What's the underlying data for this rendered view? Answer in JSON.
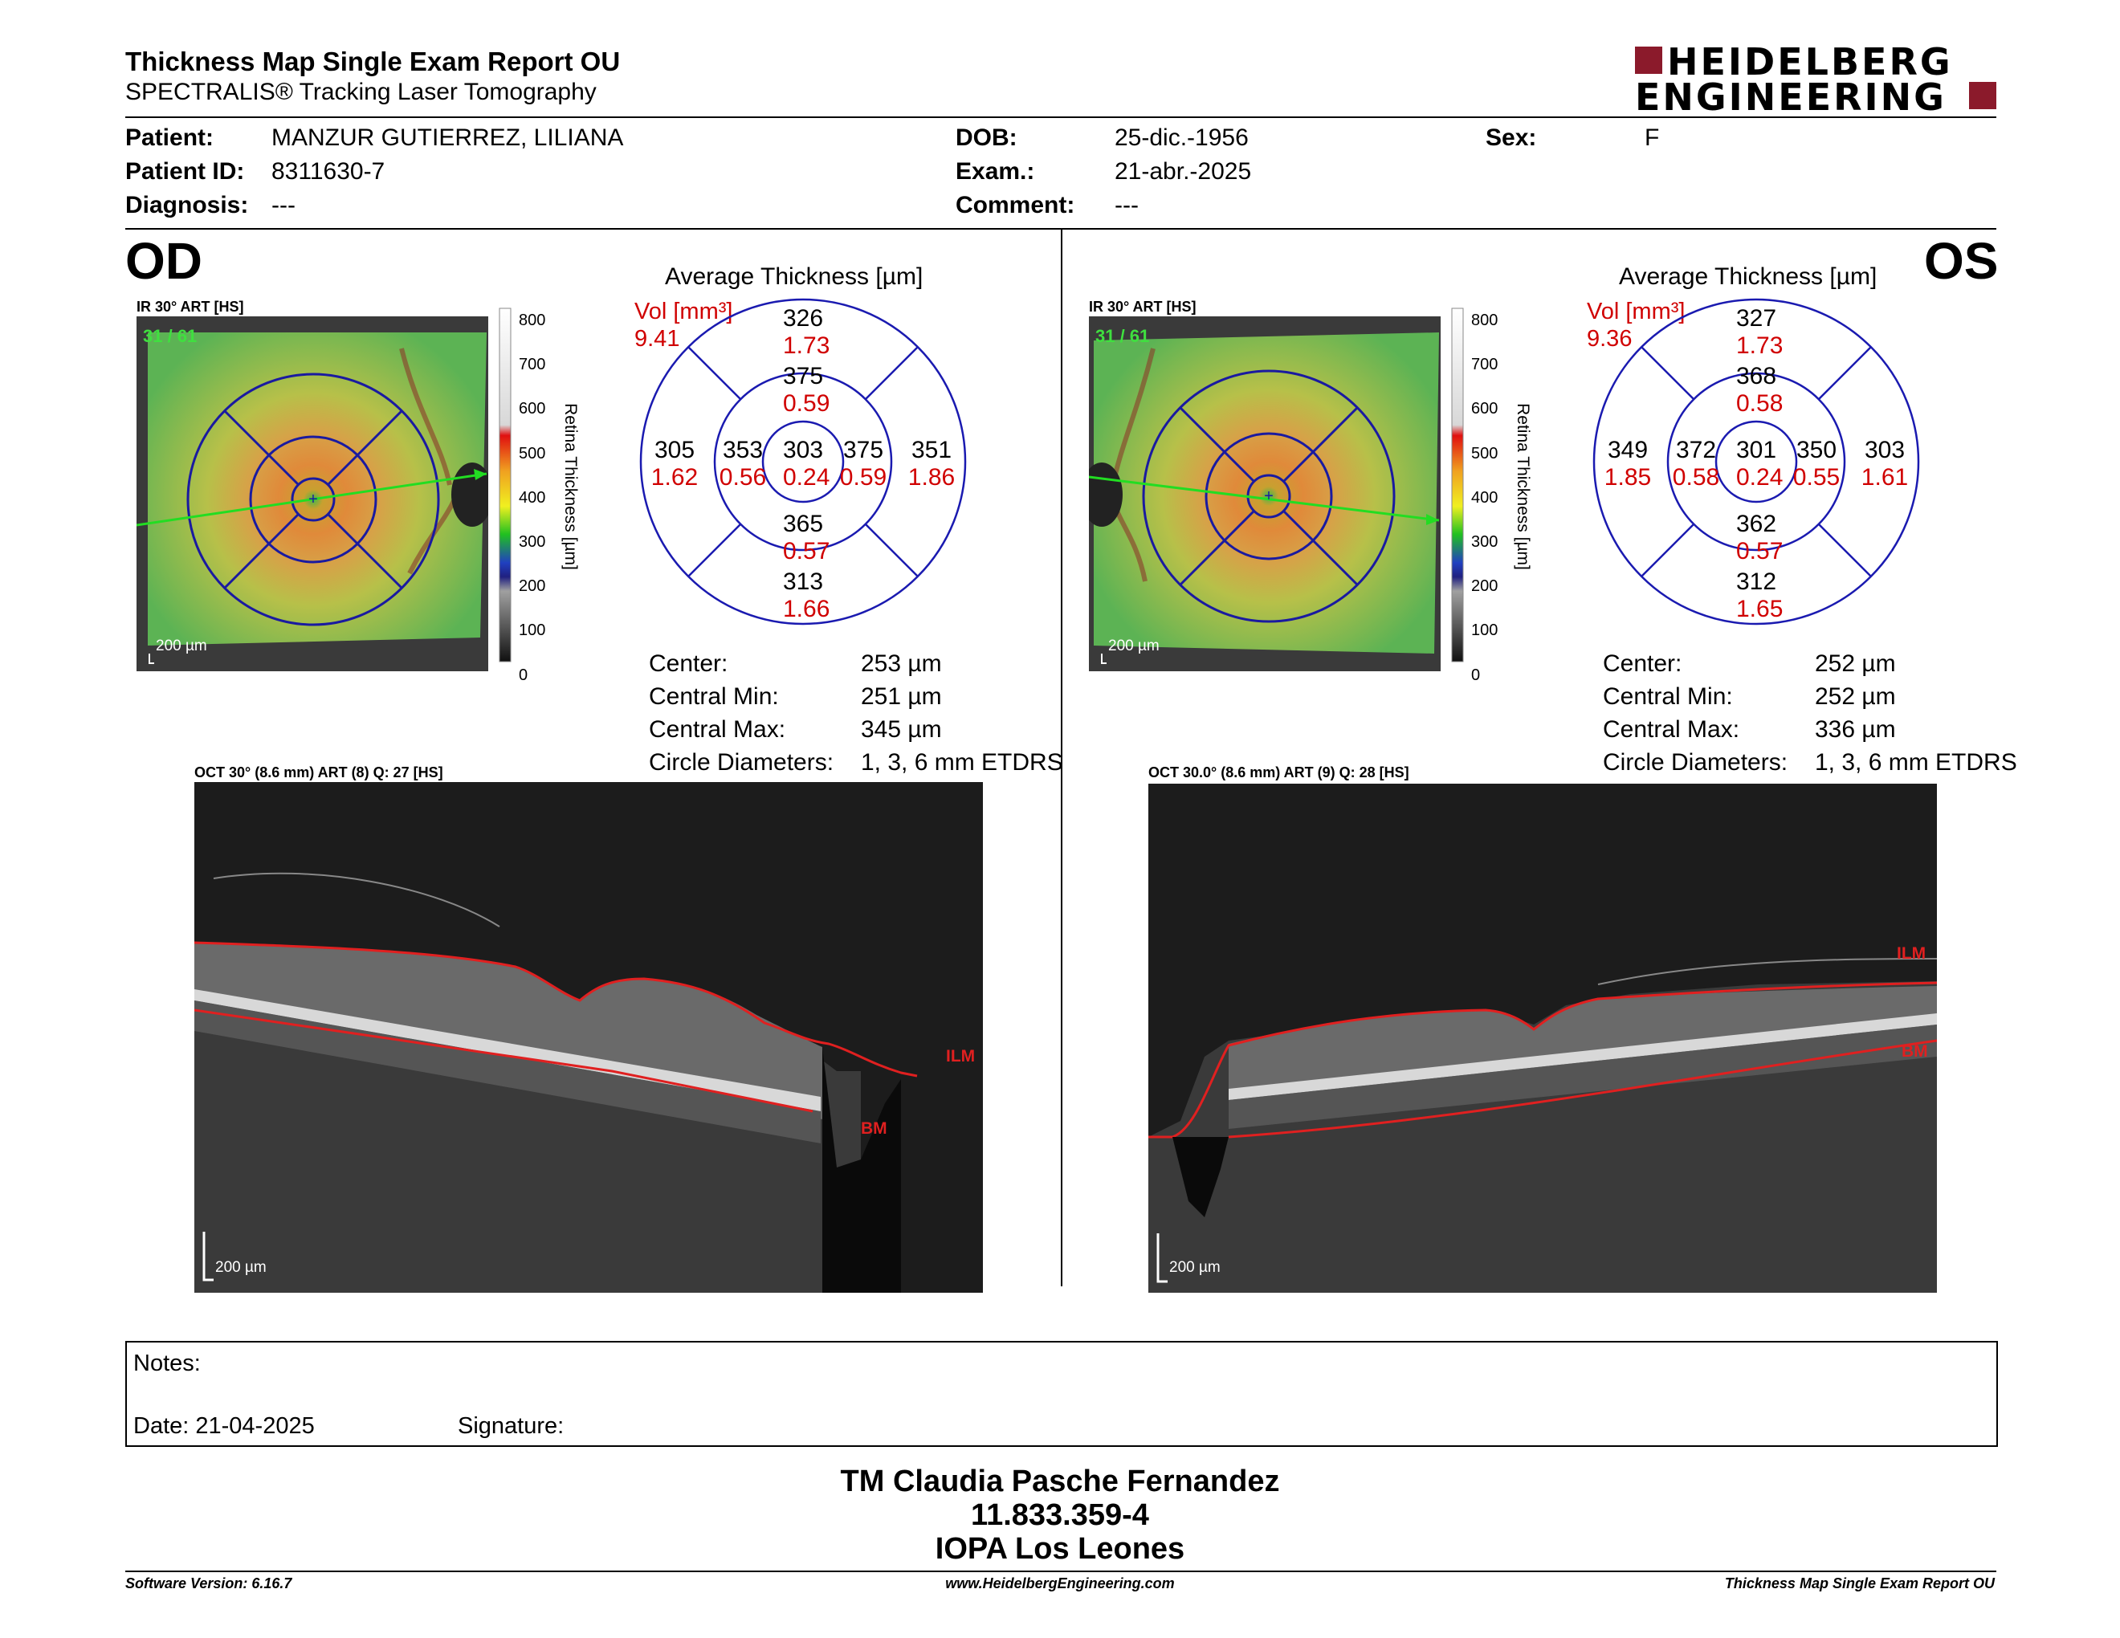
{
  "report": {
    "title": "Thickness Map Single Exam Report OU",
    "subtitle": "SPECTRALIS® Tracking Laser Tomography",
    "logo_line1": "HEIDELBERG",
    "logo_line2": "ENGINEERING",
    "brand_color": "#8b1a2b"
  },
  "patient": {
    "patient_label": "Patient:",
    "patient_value": "MANZUR GUTIERREZ, LILIANA",
    "id_label": "Patient ID:",
    "id_value": "8311630-7",
    "diag_label": "Diagnosis:",
    "diag_value": "---",
    "dob_label": "DOB:",
    "dob_value": "25-dic.-1956",
    "exam_label": "Exam.:",
    "exam_value": "21-abr.-2025",
    "comment_label": "Comment:",
    "comment_value": "---",
    "sex_label": "Sex:",
    "sex_value": "F"
  },
  "od": {
    "eye": "OD",
    "ir_label": "IR 30° ART [HS]",
    "ir_counter": "31 / 61",
    "ir_scale": "200 µm",
    "colorbar_ticks": [
      "800",
      "700",
      "600",
      "500",
      "400",
      "300",
      "200",
      "100",
      "0"
    ],
    "colorbar_title": "Retina Thickness [µm]",
    "avg_title": "Average Thickness [µm]",
    "vol_label": "Vol [mm³]",
    "vol_value": "9.41",
    "grid": {
      "center": {
        "t": "303",
        "v": "0.24"
      },
      "inner_sup": {
        "t": "375",
        "v": "0.59"
      },
      "inner_inf": {
        "t": "365",
        "v": "0.57"
      },
      "inner_left": {
        "t": "353",
        "v": "0.56"
      },
      "inner_right": {
        "t": "375",
        "v": "0.59"
      },
      "outer_sup": {
        "t": "326",
        "v": "1.73"
      },
      "outer_inf": {
        "t": "313",
        "v": "1.66"
      },
      "outer_left": {
        "t": "305",
        "v": "1.62"
      },
      "outer_right": {
        "t": "351",
        "v": "1.86"
      }
    },
    "center_label": "Center:",
    "center_value": "253 µm",
    "cmin_label": "Central Min:",
    "cmin_value": "251 µm",
    "cmax_label": "Central Max:",
    "cmax_value": "345 µm",
    "diam_label": "Circle Diameters:",
    "diam_value": "1, 3, 6 mm ETDRS",
    "oct_label": "OCT 30° (8.6 mm) ART (8) Q: 27 [HS]",
    "oct_scale": "200 µm",
    "ilm": "ILM",
    "bm": "BM"
  },
  "os": {
    "eye": "OS",
    "ir_label": "IR 30° ART [HS]",
    "ir_counter": "31 / 61",
    "ir_scale": "200 µm",
    "colorbar_ticks": [
      "800",
      "700",
      "600",
      "500",
      "400",
      "300",
      "200",
      "100",
      "0"
    ],
    "colorbar_title": "Retina Thickness [µm]",
    "avg_title": "Average Thickness [µm]",
    "vol_label": "Vol [mm³]",
    "vol_value": "9.36",
    "grid": {
      "center": {
        "t": "301",
        "v": "0.24"
      },
      "inner_sup": {
        "t": "368",
        "v": "0.58"
      },
      "inner_inf": {
        "t": "362",
        "v": "0.57"
      },
      "inner_left": {
        "t": "372",
        "v": "0.58"
      },
      "inner_right": {
        "t": "350",
        "v": "0.55"
      },
      "outer_sup": {
        "t": "327",
        "v": "1.73"
      },
      "outer_inf": {
        "t": "312",
        "v": "1.65"
      },
      "outer_left": {
        "t": "349",
        "v": "1.85"
      },
      "outer_right": {
        "t": "303",
        "v": "1.61"
      }
    },
    "center_label": "Center:",
    "center_value": "252 µm",
    "cmin_label": "Central Min:",
    "cmin_value": "252 µm",
    "cmax_label": "Central Max:",
    "cmax_value": "336 µm",
    "diam_label": "Circle Diameters:",
    "diam_value": "1, 3, 6 mm ETDRS",
    "oct_label": "OCT 30.0° (8.6 mm) ART (9) Q: 28 [HS]",
    "oct_scale": "200 µm",
    "ilm": "ILM",
    "bm": "BM"
  },
  "notes": {
    "notes_label": "Notes:",
    "date_label": "Date: 21-04-2025",
    "signature_label": "Signature:"
  },
  "signoff": {
    "name": "TM Claudia Pasche Fernandez",
    "rut": "11.833.359-4",
    "org": "IOPA Los Leones"
  },
  "footer": {
    "left": "Software Version: 6.16.7",
    "center": "www.HeidelbergEngineering.com",
    "right": "Thickness Map Single Exam Report OU"
  }
}
